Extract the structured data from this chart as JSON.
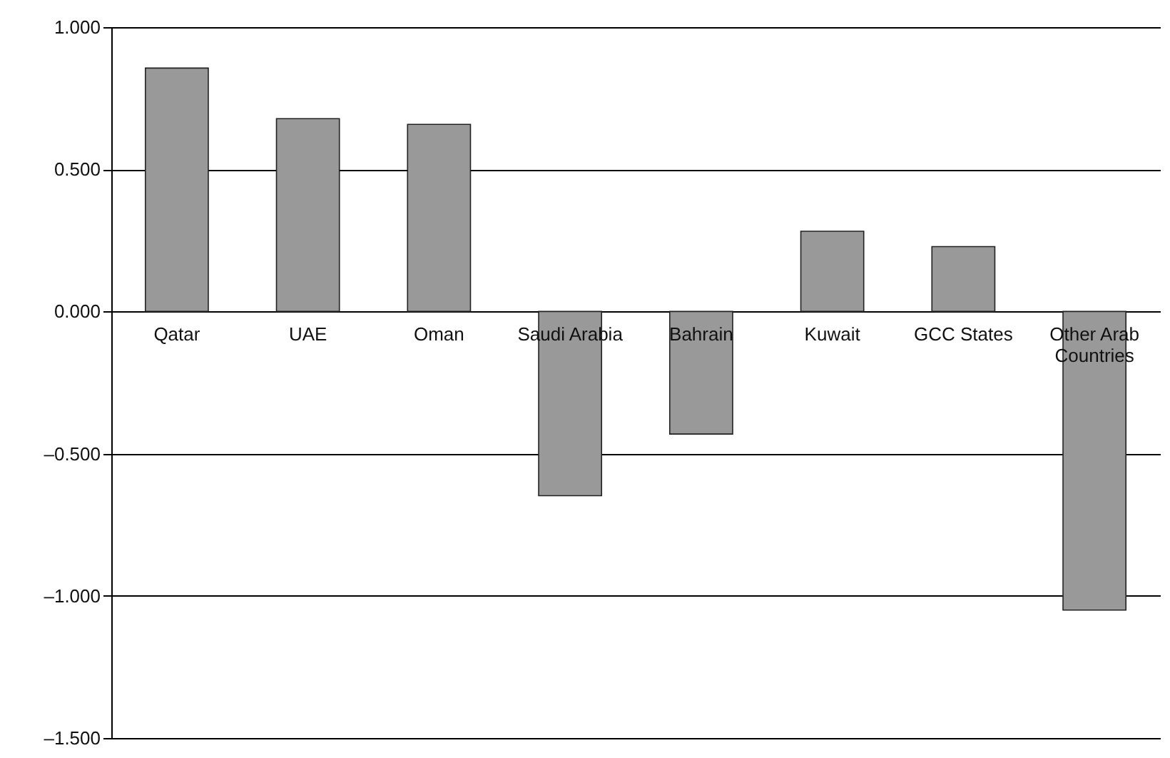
{
  "chart_data": {
    "type": "bar",
    "categories": [
      "Qatar",
      "UAE",
      "Oman",
      "Saudi Arabia",
      "Bahrain",
      "Kuwait",
      "GCC States",
      "Other Arab Countries"
    ],
    "values": [
      0.856,
      0.678,
      0.658,
      -0.648,
      -0.431,
      0.282,
      0.228,
      -1.05
    ],
    "color": "#999999",
    "ylim": [
      -1.5,
      1.0
    ],
    "yticks": [
      {
        "value": -1.5,
        "label": "–1.500"
      },
      {
        "value": -1.0,
        "label": "–1.000"
      },
      {
        "value": -0.5,
        "label": "–0.500"
      },
      {
        "value": 0,
        "label": "0.000"
      },
      {
        "value": 0.5,
        "label": "0.500"
      },
      {
        "value": 1.0,
        "label": "1.000"
      }
    ],
    "grid": "y"
  }
}
